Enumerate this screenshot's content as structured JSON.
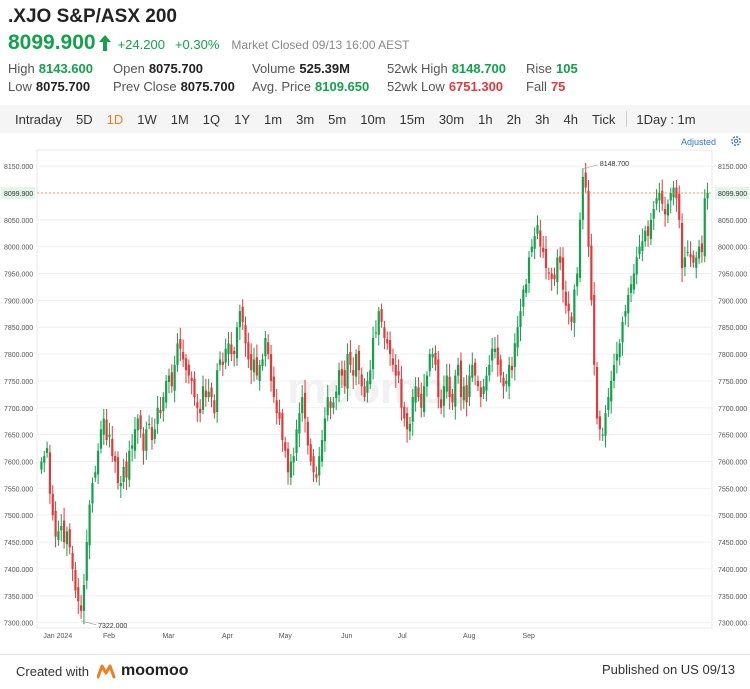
{
  "header": {
    "title": ".XJO S&P/ASX 200",
    "price": "8099.900",
    "change": "+24.200",
    "change_pct": "+0.30%",
    "status": "Market Closed  09/13 16:00 AEST"
  },
  "stats": {
    "high_label": "High",
    "high_value": "8143.600",
    "low_label": "Low",
    "low_value": "8075.700",
    "open_label": "Open",
    "open_value": "8075.700",
    "prev_close_label": "Prev Close",
    "prev_close_value": "8075.700",
    "volume_label": "Volume",
    "volume_value": "525.39M",
    "avg_price_label": "Avg. Price",
    "avg_price_value": "8109.650",
    "wk52_high_label": "52wk High",
    "wk52_high_value": "8148.700",
    "wk52_low_label": "52wk Low",
    "wk52_low_value": "6751.300",
    "rise_label": "Rise",
    "rise_value": "105",
    "fall_label": "Fall",
    "fall_value": "75"
  },
  "tabs": [
    "Intraday",
    "5D",
    "1D",
    "1W",
    "1M",
    "1Q",
    "1Y",
    "1m",
    "3m",
    "5m",
    "10m",
    "15m",
    "30m",
    "1h",
    "2h",
    "3h",
    "4h",
    "Tick"
  ],
  "active_tab": "1D",
  "interval_selector": "1Day : 1m",
  "adjusted_label": "Adjusted",
  "colors": {
    "up": "#13a24b",
    "down": "#e13a3a",
    "accent": "#f07f21",
    "link": "#2a77d4"
  },
  "icons": {
    "arrow": "up-arrow-icon",
    "settings": "gear-icon",
    "logo": "moomoo-logo-icon"
  },
  "chart_data": {
    "type": "candlestick",
    "y_ticks": [
      "8150.000",
      "8100.000",
      "8050.000",
      "8000.000",
      "7950.000",
      "7900.000",
      "7850.000",
      "7800.000",
      "7750.000",
      "7700.000",
      "7650.000",
      "7600.000",
      "7550.000",
      "7500.000",
      "7450.000",
      "7400.000",
      "7350.000",
      "7300.000"
    ],
    "x_labels": [
      "Jan 2024",
      "Feb",
      "Mar",
      "Apr",
      "May",
      "Jun",
      "Jul",
      "Aug",
      "Sep"
    ],
    "ylim": [
      7290,
      8180
    ],
    "current_price_line": 8099.9,
    "current_price_label": "8099.900",
    "max_annotation": "8148.700",
    "min_annotation": "7322.000",
    "watermark": "moomoo",
    "series_close": [
      7600,
      7610,
      7625,
      7540,
      7500,
      7460,
      7470,
      7480,
      7450,
      7470,
      7440,
      7400,
      7360,
      7340,
      7322,
      7370,
      7450,
      7520,
      7560,
      7580,
      7620,
      7660,
      7680,
      7640,
      7650,
      7610,
      7600,
      7560,
      7560,
      7590,
      7570,
      7620,
      7630,
      7660,
      7680,
      7660,
      7620,
      7660,
      7670,
      7640,
      7660,
      7700,
      7690,
      7720,
      7750,
      7760,
      7740,
      7780,
      7820,
      7810,
      7790,
      7770,
      7760,
      7750,
      7720,
      7700,
      7690,
      7740,
      7720,
      7730,
      7720,
      7690,
      7770,
      7790,
      7780,
      7810,
      7820,
      7800,
      7800,
      7850,
      7880,
      7860,
      7820,
      7790,
      7770,
      7790,
      7760,
      7780,
      7790,
      7830,
      7800,
      7750,
      7720,
      7690,
      7680,
      7640,
      7620,
      7580,
      7600,
      7610,
      7660,
      7690,
      7720,
      7680,
      7630,
      7600,
      7580,
      7570,
      7610,
      7640,
      7680,
      7720,
      7700,
      7710,
      7730,
      7770,
      7760,
      7740,
      7800,
      7780,
      7760,
      7800,
      7770,
      7740,
      7720,
      7750,
      7770,
      7830,
      7840,
      7880,
      7860,
      7830,
      7820,
      7800,
      7780,
      7760,
      7760,
      7700,
      7680,
      7660,
      7670,
      7720,
      7740,
      7720,
      7700,
      7740,
      7760,
      7800,
      7800,
      7780,
      7720,
      7700,
      7740,
      7760,
      7720,
      7710,
      7760,
      7780,
      7720,
      7740,
      7710,
      7760,
      7780,
      7760,
      7740,
      7720,
      7740,
      7760,
      7780,
      7810,
      7810,
      7780,
      7760,
      7740,
      7750,
      7780,
      7770,
      7820,
      7850,
      7880,
      7920,
      7930,
      7980,
      8000,
      8020,
      8040,
      8000,
      7990,
      7960,
      7950,
      7940,
      7940,
      7980,
      7970,
      7920,
      7890,
      7880,
      7860,
      7920,
      7950,
      8050,
      8130,
      8110,
      8000,
      7900,
      7780,
      7680,
      7660,
      7650,
      7690,
      7720,
      7750,
      7780,
      7800,
      7820,
      7860,
      7880,
      7910,
      7930,
      7950,
      7980,
      8000,
      8010,
      8030,
      8020,
      8050,
      8070,
      8090,
      8100,
      8080,
      8060,
      8080,
      8100,
      8110,
      8090,
      8050,
      7960,
      7980,
      7990,
      7980,
      7970,
      7980,
      8000,
      7990,
      8090,
      8100
    ]
  },
  "footer": {
    "created_with": "Created with",
    "brand": "moomoo",
    "published": "Published on US 09/13"
  }
}
